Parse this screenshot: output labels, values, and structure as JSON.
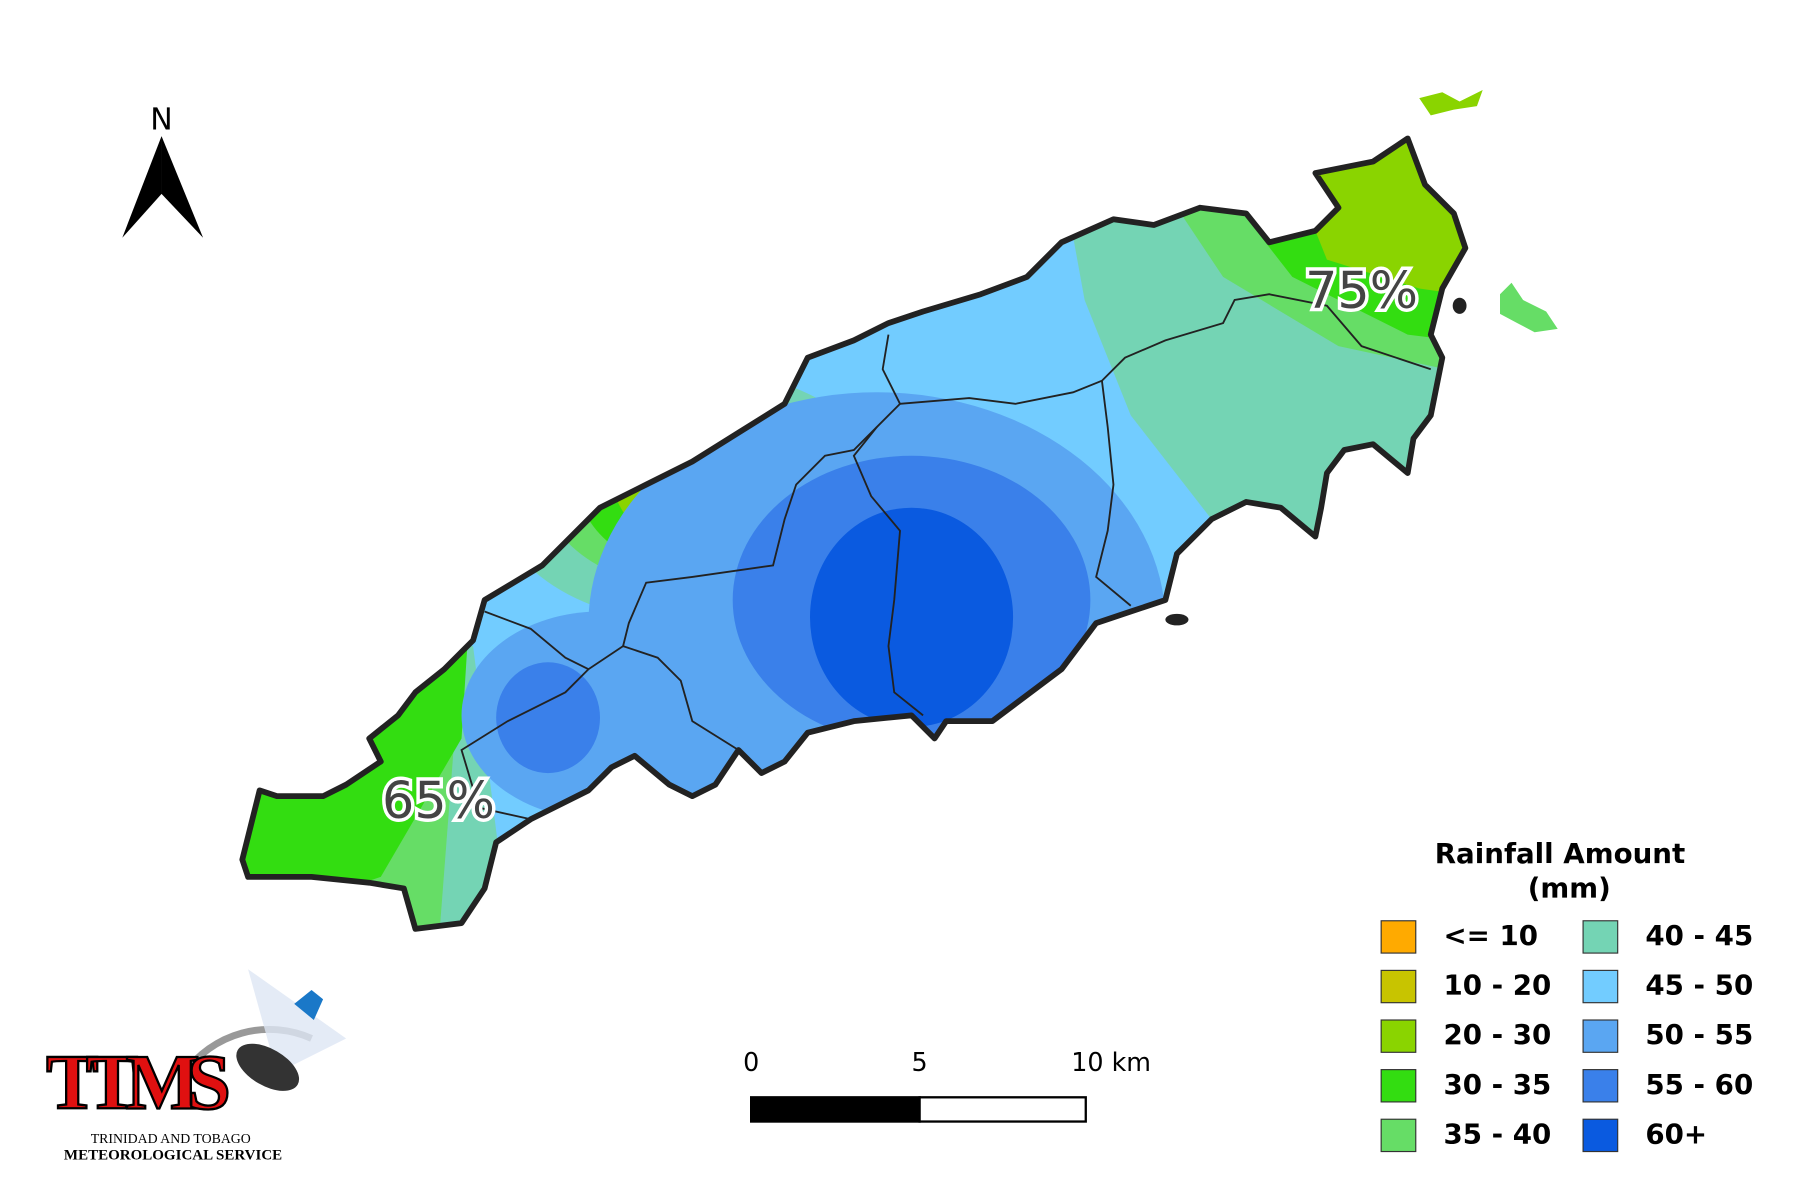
{
  "north_arrow": {
    "label": "N"
  },
  "map_labels": [
    "75%",
    "65%"
  ],
  "legend": {
    "title": [
      "Rainfall Amount",
      "(mm)"
    ],
    "items": [
      {
        "label": "<= 10",
        "color": "#ffaa00"
      },
      {
        "label": "10 - 20",
        "color": "#c8c400"
      },
      {
        "label": "20 - 30",
        "color": "#8ad400"
      },
      {
        "label": "30 - 35",
        "color": "#33dd11"
      },
      {
        "label": "35 - 40",
        "color": "#66dd66"
      },
      {
        "label": "40 - 45",
        "color": "#74d4b4"
      },
      {
        "label": "45 - 50",
        "color": "#72ccff"
      },
      {
        "label": "50 - 55",
        "color": "#5aa6f2"
      },
      {
        "label": "55 - 60",
        "color": "#3a80ea"
      },
      {
        "label": "60+",
        "color": "#0a5ae0"
      }
    ]
  },
  "scale_bar": {
    "labels": [
      "0",
      "5",
      "10 km"
    ]
  },
  "logo": {
    "title": "TTMS",
    "lines": [
      "TRINIDAD AND TOBAGO",
      "METEOROLOGICAL SERVICE"
    ]
  }
}
